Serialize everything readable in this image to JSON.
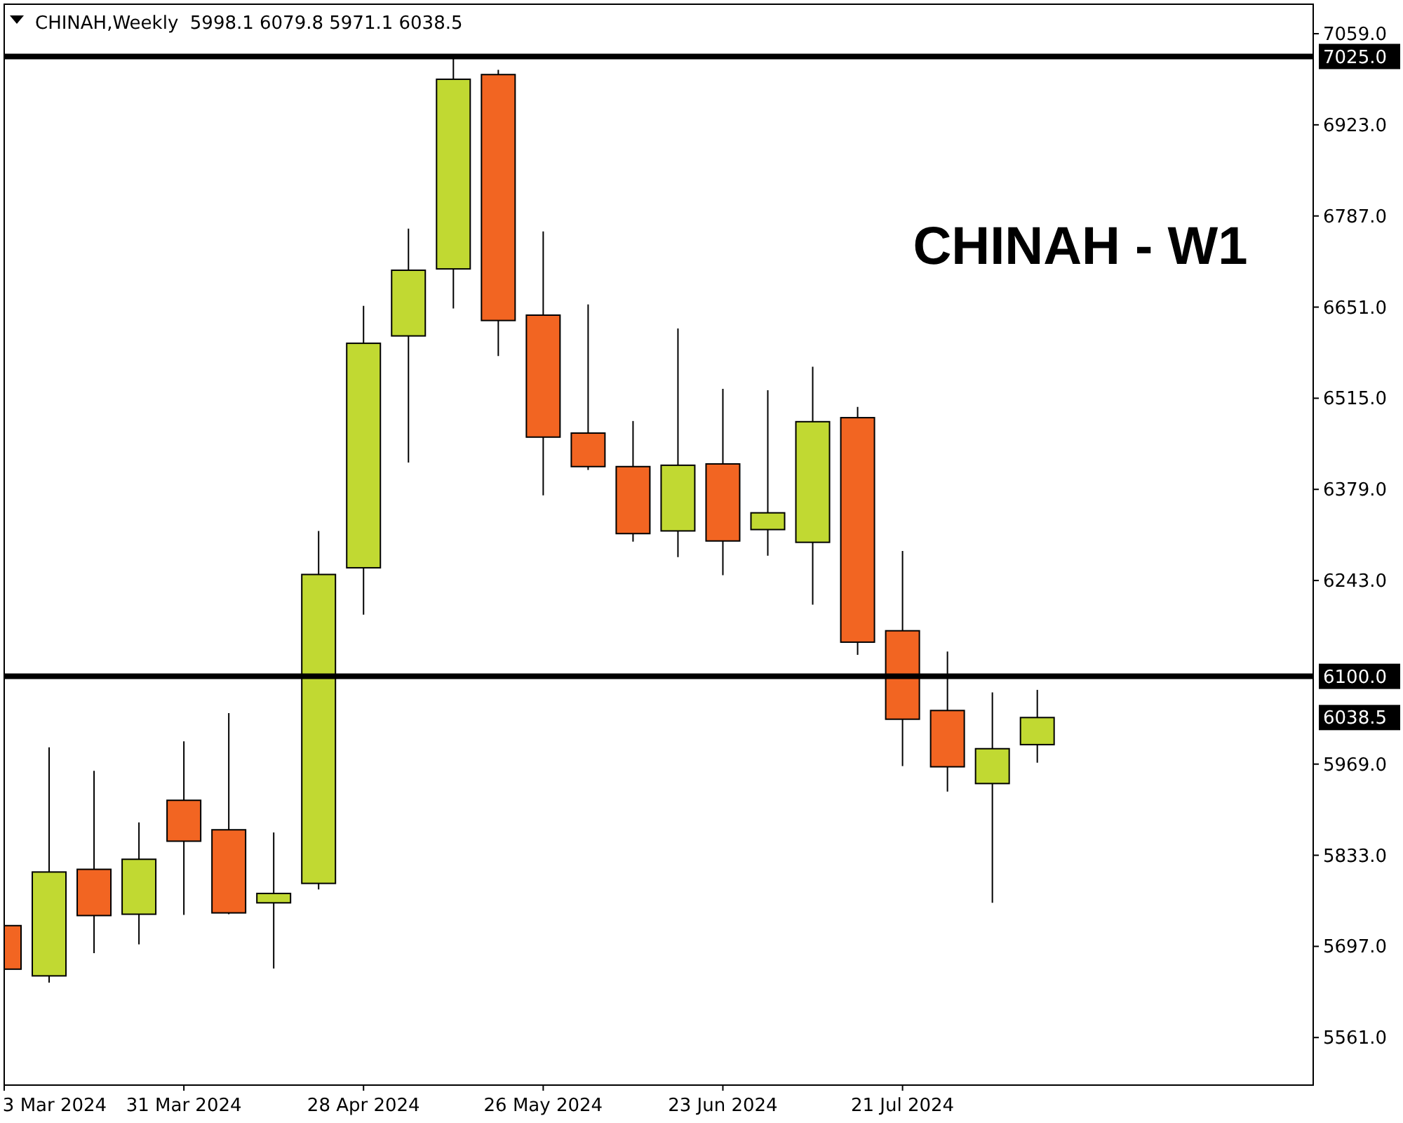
{
  "chart_data": {
    "type": "candlestick",
    "title": "CHINAH,Weekly  5998.1 6079.8 5971.1 6038.5",
    "x": [
      "2024-03-03",
      "2024-03-10",
      "2024-03-17",
      "2024-03-24",
      "2024-03-31",
      "2024-04-07",
      "2024-04-14",
      "2024-04-21",
      "2024-04-28",
      "2024-05-05",
      "2024-05-12",
      "2024-05-19",
      "2024-05-26",
      "2024-06-02",
      "2024-06-09",
      "2024-06-16",
      "2024-06-23",
      "2024-06-30",
      "2024-07-07",
      "2024-07-14",
      "2024-07-21",
      "2024-07-28",
      "2024-08-04",
      "2024-08-11"
    ],
    "xlim": [
      "2024-03-03",
      "2024-09-23"
    ],
    "xticks": [
      {
        "value": "2024-03-03",
        "label": "3 Mar 2024"
      },
      {
        "value": "2024-03-31",
        "label": "31 Mar 2024"
      },
      {
        "value": "2024-04-28",
        "label": "28 Apr 2024"
      },
      {
        "value": "2024-05-26",
        "label": "26 May 2024"
      },
      {
        "value": "2024-06-23",
        "label": "23 Jun 2024"
      },
      {
        "value": "2024-07-21",
        "label": "21 Jul 2024"
      }
    ],
    "ohlc": [
      [
        5728,
        5754,
        5530,
        5663
      ],
      [
        5653,
        5994,
        5643,
        5808
      ],
      [
        5812,
        5959,
        5687,
        5743
      ],
      [
        5745,
        5882,
        5700,
        5827
      ],
      [
        5915,
        6003,
        5744,
        5854
      ],
      [
        5871,
        6045,
        5745,
        5747
      ],
      [
        5762,
        5867,
        5664,
        5776
      ],
      [
        5791,
        6317,
        5782,
        6252
      ],
      [
        6262,
        6653,
        6192,
        6597
      ],
      [
        6608,
        6768,
        6419,
        6706
      ],
      [
        6708,
        7025,
        6649,
        6991
      ],
      [
        6998,
        7005,
        6578,
        6631
      ],
      [
        6639,
        6764,
        6370,
        6457
      ],
      [
        6463,
        6655,
        6408,
        6413
      ],
      [
        6413,
        6481,
        6301,
        6313
      ],
      [
        6317,
        6619,
        6278,
        6415
      ],
      [
        6417,
        6529,
        6251,
        6302
      ],
      [
        6319,
        6527,
        6280,
        6344
      ],
      [
        6300,
        6562,
        6207,
        6480
      ],
      [
        6486,
        6502,
        6132,
        6151
      ],
      [
        6168,
        6287,
        5966,
        6036
      ],
      [
        6049,
        6137,
        5928,
        5965
      ],
      [
        5940,
        6076,
        5762,
        5992
      ],
      [
        5998.1,
        6079.8,
        5971.1,
        6038.5
      ]
    ],
    "colors": [
      "#f26522",
      "#c1d932",
      "#f26522",
      "#c1d932",
      "#f26522",
      "#f26522",
      "#c1d932",
      "#c1d932",
      "#c1d932",
      "#c1d932",
      "#c1d932",
      "#f26522",
      "#f26522",
      "#f26522",
      "#f26522",
      "#c1d932",
      "#f26522",
      "#c1d932",
      "#c1d932",
      "#f26522",
      "#f26522",
      "#f26522",
      "#c1d932",
      "#c1d932"
    ],
    "ylim": [
      5490,
      7103
    ],
    "yticks": [
      {
        "value": 5561,
        "label": "5561.0"
      },
      {
        "value": 5697,
        "label": "5697.0"
      },
      {
        "value": 5833,
        "label": "5833.0"
      },
      {
        "value": 5969,
        "label": "5969.0"
      },
      {
        "value": 6243,
        "label": "6243.0"
      },
      {
        "value": 6379,
        "label": "6379.0"
      },
      {
        "value": 6515,
        "label": "6515.0"
      },
      {
        "value": 6651,
        "label": "6651.0"
      },
      {
        "value": 6787,
        "label": "6787.0"
      },
      {
        "value": 6923,
        "label": "6923.0"
      },
      {
        "value": 7059,
        "label": "7059.0"
      }
    ],
    "ref_lines": [
      {
        "axis": "y",
        "value": 7025,
        "label": "7025.0",
        "color": "#000000"
      },
      {
        "axis": "y",
        "value": 6100,
        "label": "6100.0",
        "color": "#000000"
      }
    ],
    "annotations": [
      "CHINAH - W1",
      "6038.5"
    ],
    "grid": false
  }
}
